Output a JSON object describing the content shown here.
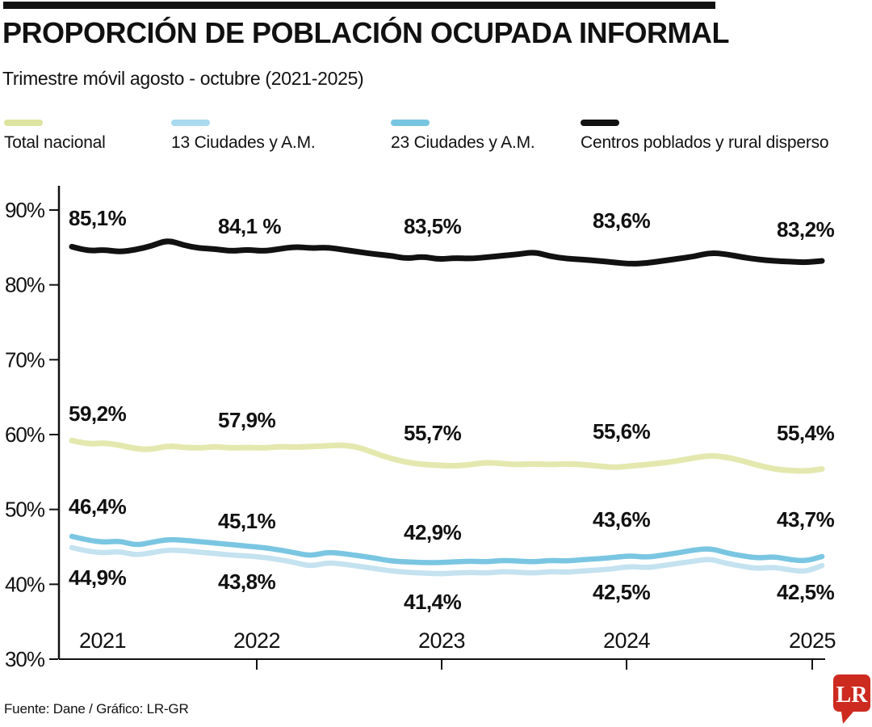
{
  "header": {
    "title": "PROPORCIÓN DE POBLACIÓN OCUPADA INFORMAL",
    "subtitle": "Trimestre móvil agosto - octubre (2021-2025)"
  },
  "legend": [
    {
      "label": "Total nacional",
      "color": "#dde3a0"
    },
    {
      "label": "13 Ciudades y A.M.",
      "color": "#a9d9ee"
    },
    {
      "label": "23 Ciudades y A.M.",
      "color": "#77c5e0"
    },
    {
      "label": "Centros poblados y rural disperso",
      "color": "#111111"
    }
  ],
  "chart_data": {
    "type": "line",
    "title": "PROPORCIÓN DE POBLACIÓN OCUPADA INFORMAL",
    "subtitle": "Trimestre móvil agosto - octubre (2021-2025)",
    "grid": false,
    "legend_position": "top",
    "x_axis": {
      "tick_labels": [
        "2021",
        "2022",
        "2023",
        "2024",
        "2025"
      ]
    },
    "y_axis": {
      "tick_labels": [
        "90%",
        "80%",
        "70%",
        "60%",
        "50%",
        "40%",
        "30%"
      ],
      "ticks": [
        90,
        80,
        70,
        60,
        50,
        40,
        30
      ],
      "min": 30,
      "max": 90,
      "unit": "%"
    },
    "series": [
      {
        "name": "Centros poblados y rural disperso",
        "color": "#111111",
        "width": 7,
        "labels": [
          "85,1%",
          "84,1 %",
          "83,5%",
          "83,6%",
          "83,2%"
        ],
        "label_values": [
          85.1,
          84.1,
          83.5,
          83.6,
          83.2
        ],
        "values": [
          85.1,
          84.5,
          84.7,
          84.4,
          84.7,
          85.2,
          86.0,
          85.3,
          84.9,
          84.8,
          84.5,
          84.7,
          84.5,
          84.8,
          85.1,
          84.9,
          85.0,
          84.7,
          84.4,
          84.1,
          83.9,
          83.5,
          83.8,
          83.4,
          83.6,
          83.5,
          83.7,
          83.9,
          84.1,
          84.4,
          83.8,
          83.5,
          83.4,
          83.2,
          83.0,
          82.8,
          82.9,
          83.2,
          83.5,
          83.8,
          84.3,
          84.1,
          83.7,
          83.4,
          83.2,
          83.1,
          83.0,
          83.2
        ]
      },
      {
        "name": "Total nacional",
        "color": "#e4e8ae",
        "width": 7,
        "labels": [
          "59,2%",
          "57,9%",
          "55,7%",
          "55,6%",
          "55,4%"
        ],
        "label_values": [
          59.2,
          57.9,
          55.7,
          55.6,
          55.4
        ],
        "values": [
          59.2,
          58.7,
          58.9,
          58.6,
          58.1,
          58.0,
          58.5,
          58.3,
          58.2,
          58.4,
          58.2,
          58.3,
          58.2,
          58.4,
          58.3,
          58.4,
          58.5,
          58.6,
          58.3,
          57.5,
          56.8,
          56.3,
          56.0,
          55.9,
          55.8,
          56.0,
          56.3,
          56.1,
          56.0,
          56.1,
          56.0,
          56.1,
          56.0,
          55.8,
          55.6,
          55.8,
          56.0,
          56.2,
          56.5,
          56.9,
          57.2,
          57.0,
          56.5,
          55.9,
          55.4,
          55.2,
          55.1,
          55.4
        ]
      },
      {
        "name": "23 Ciudades y A.M.",
        "color": "#7ac6e2",
        "width": 6.5,
        "labels": [
          "46,4%",
          "45,1%",
          "42,9%",
          "43,6%",
          "43,7%"
        ],
        "label_values": [
          46.4,
          45.1,
          42.9,
          43.6,
          43.7
        ],
        "values": [
          46.4,
          45.9,
          45.6,
          45.8,
          45.2,
          45.6,
          46.0,
          45.9,
          45.7,
          45.5,
          45.3,
          45.1,
          44.9,
          44.6,
          44.2,
          43.8,
          44.3,
          44.1,
          43.8,
          43.5,
          43.1,
          43.0,
          42.9,
          42.9,
          43.0,
          43.1,
          43.0,
          43.2,
          43.1,
          43.0,
          43.2,
          43.1,
          43.3,
          43.4,
          43.6,
          43.8,
          43.6,
          43.9,
          44.2,
          44.6,
          44.8,
          44.2,
          43.8,
          43.5,
          43.7,
          43.3,
          43.1,
          43.7
        ]
      },
      {
        "name": "13 Ciudades y A.M.",
        "color": "#c4e2f0",
        "width": 6.5,
        "labels": [
          "44,9%",
          "43,8%",
          "41,4%",
          "42,5%",
          "42,5%"
        ],
        "label_values": [
          44.9,
          43.8,
          41.4,
          42.5,
          42.5
        ],
        "values": [
          44.9,
          44.4,
          44.2,
          44.4,
          43.9,
          44.2,
          44.6,
          44.5,
          44.3,
          44.1,
          43.9,
          43.8,
          43.6,
          43.3,
          42.9,
          42.4,
          42.9,
          42.7,
          42.4,
          42.1,
          41.8,
          41.6,
          41.5,
          41.4,
          41.5,
          41.6,
          41.5,
          41.7,
          41.6,
          41.5,
          41.7,
          41.6,
          41.8,
          41.9,
          42.1,
          42.4,
          42.2,
          42.5,
          42.8,
          43.1,
          43.4,
          42.8,
          42.4,
          42.1,
          42.3,
          41.9,
          41.7,
          42.5
        ]
      }
    ]
  },
  "footer": {
    "source": "Fuente: Dane / Gráfico: LR-GR"
  },
  "branding": {
    "logo_text": "LR",
    "logo_color": "#cd2a20"
  }
}
